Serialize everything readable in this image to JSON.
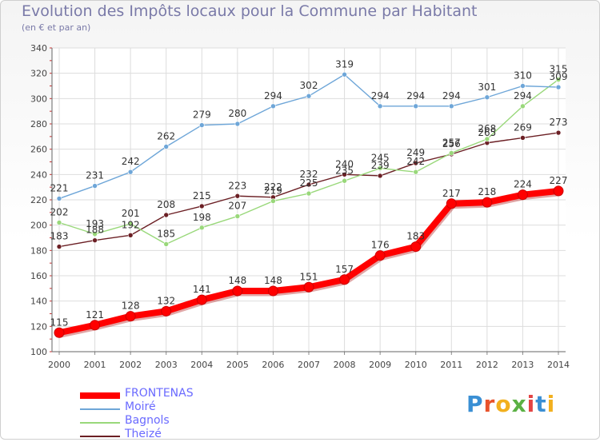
{
  "header": {
    "title": "Evolution des Impôts locaux pour la Commune par Habitant",
    "subtitle": "(en € et par an)"
  },
  "logo": {
    "letters": [
      "P",
      "r",
      "o",
      "x",
      "i",
      "t",
      "i"
    ],
    "colors": [
      "#3a8fd4",
      "#e8522b",
      "#f2b01e",
      "#5bb144",
      "#e34444",
      "#3a8fd4",
      "#f2b01e"
    ]
  },
  "chart_data": {
    "type": "line",
    "x": [
      2000,
      2001,
      2002,
      2003,
      2004,
      2005,
      2006,
      2007,
      2008,
      2009,
      2010,
      2011,
      2012,
      2013,
      2014
    ],
    "ylim": [
      100,
      340
    ],
    "yticks": [
      100,
      120,
      140,
      160,
      180,
      200,
      220,
      240,
      260,
      280,
      300,
      320,
      340
    ],
    "grid": true,
    "legend_position": "bottom-left",
    "series": [
      {
        "name": "Theizé",
        "color": "#6b1f24",
        "labelColor": "#333333",
        "values": [
          183,
          188,
          192,
          208,
          215,
          223,
          222,
          232,
          240,
          239,
          249,
          256,
          265,
          269,
          273
        ]
      },
      {
        "name": "Bagnols",
        "color": "#99d87a",
        "labelColor": "#333333",
        "values": [
          202,
          193,
          201,
          185,
          198,
          207,
          219,
          225,
          235,
          245,
          242,
          257,
          268,
          294,
          315
        ]
      },
      {
        "name": "Moiré",
        "color": "#6ea6d8",
        "labelColor": "#333333",
        "values": [
          221,
          231,
          242,
          262,
          279,
          280,
          294,
          302,
          319,
          294,
          294,
          294,
          301,
          310,
          309
        ]
      },
      {
        "name": "FRONTENAS",
        "color": "#ff0000",
        "labelColor": "#333333",
        "values": [
          115,
          121,
          128,
          132,
          141,
          148,
          148,
          151,
          157,
          176,
          183,
          217,
          218,
          224,
          227
        ]
      }
    ],
    "legend_order": [
      "FRONTENAS",
      "Moiré",
      "Bagnols",
      "Theizé"
    ],
    "legend_label_colors": {
      "FRONTENAS": "#6a6aff",
      "Moiré": "#6a6aff",
      "Bagnols": "#6a6aff",
      "Theizé": "#6a6aff"
    }
  }
}
